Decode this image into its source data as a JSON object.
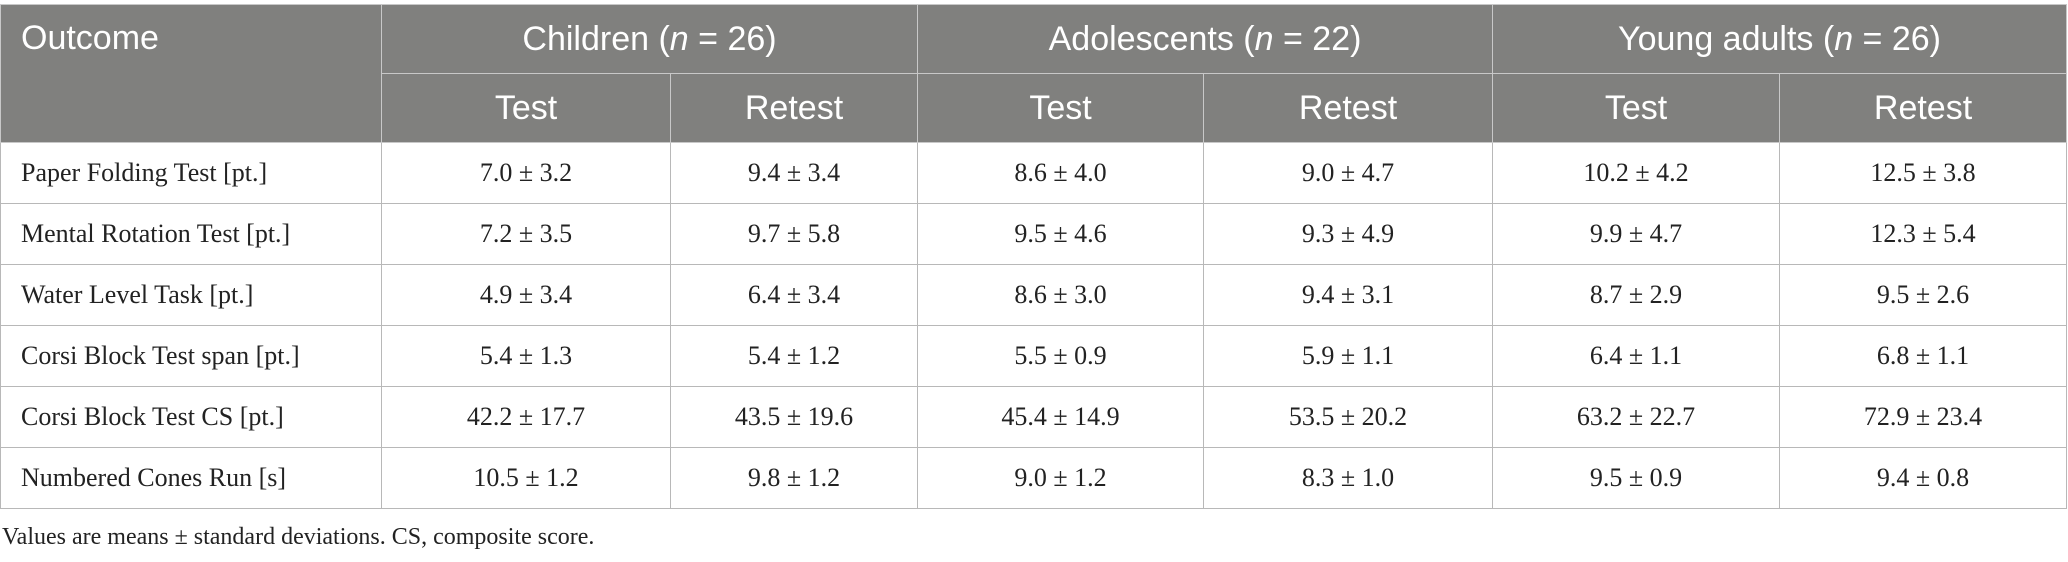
{
  "table": {
    "header": {
      "outcome": "Outcome",
      "groups": [
        {
          "prefix": "Children (",
          "n": "n",
          "suffix": " = 26)"
        },
        {
          "prefix": "Adolescents (",
          "n": "n",
          "suffix": " = 22)"
        },
        {
          "prefix": "Young adults (",
          "n": "n",
          "suffix": " = 26)"
        }
      ],
      "subheaders": [
        "Test",
        "Retest",
        "Test",
        "Retest",
        "Test",
        "Retest"
      ]
    },
    "rows": [
      [
        "Paper Folding Test [pt.]",
        "7.0 ± 3.2",
        "9.4 ± 3.4",
        "8.6 ± 4.0",
        "9.0 ± 4.7",
        "10.2 ± 4.2",
        "12.5 ± 3.8"
      ],
      [
        "Mental Rotation Test [pt.]",
        "7.2 ± 3.5",
        "9.7 ± 5.8",
        "9.5 ± 4.6",
        "9.3 ± 4.9",
        "9.9 ± 4.7",
        "12.3 ± 5.4"
      ],
      [
        "Water Level Task [pt.]",
        "4.9 ± 3.4",
        "6.4 ± 3.4",
        "8.6 ± 3.0",
        "9.4 ± 3.1",
        "8.7 ± 2.9",
        "9.5 ± 2.6"
      ],
      [
        "Corsi Block Test span [pt.]",
        "5.4 ± 1.3",
        "5.4 ± 1.2",
        "5.5 ± 0.9",
        "5.9 ± 1.1",
        "6.4 ± 1.1",
        "6.8 ± 1.1"
      ],
      [
        "Corsi Block Test CS [pt.]",
        "42.2 ± 17.7",
        "43.5 ± 19.6",
        "45.4 ± 14.9",
        "53.5 ± 20.2",
        "63.2 ± 22.7",
        "72.9 ± 23.4"
      ],
      [
        "Numbered Cones Run [s]",
        "10.5 ± 1.2",
        "9.8 ± 1.2",
        "9.0 ± 1.2",
        "8.3 ± 1.0",
        "9.5 ± 0.9",
        "9.4 ± 0.8"
      ]
    ],
    "footnote": "Values are means ± standard deviations. CS, composite score."
  }
}
